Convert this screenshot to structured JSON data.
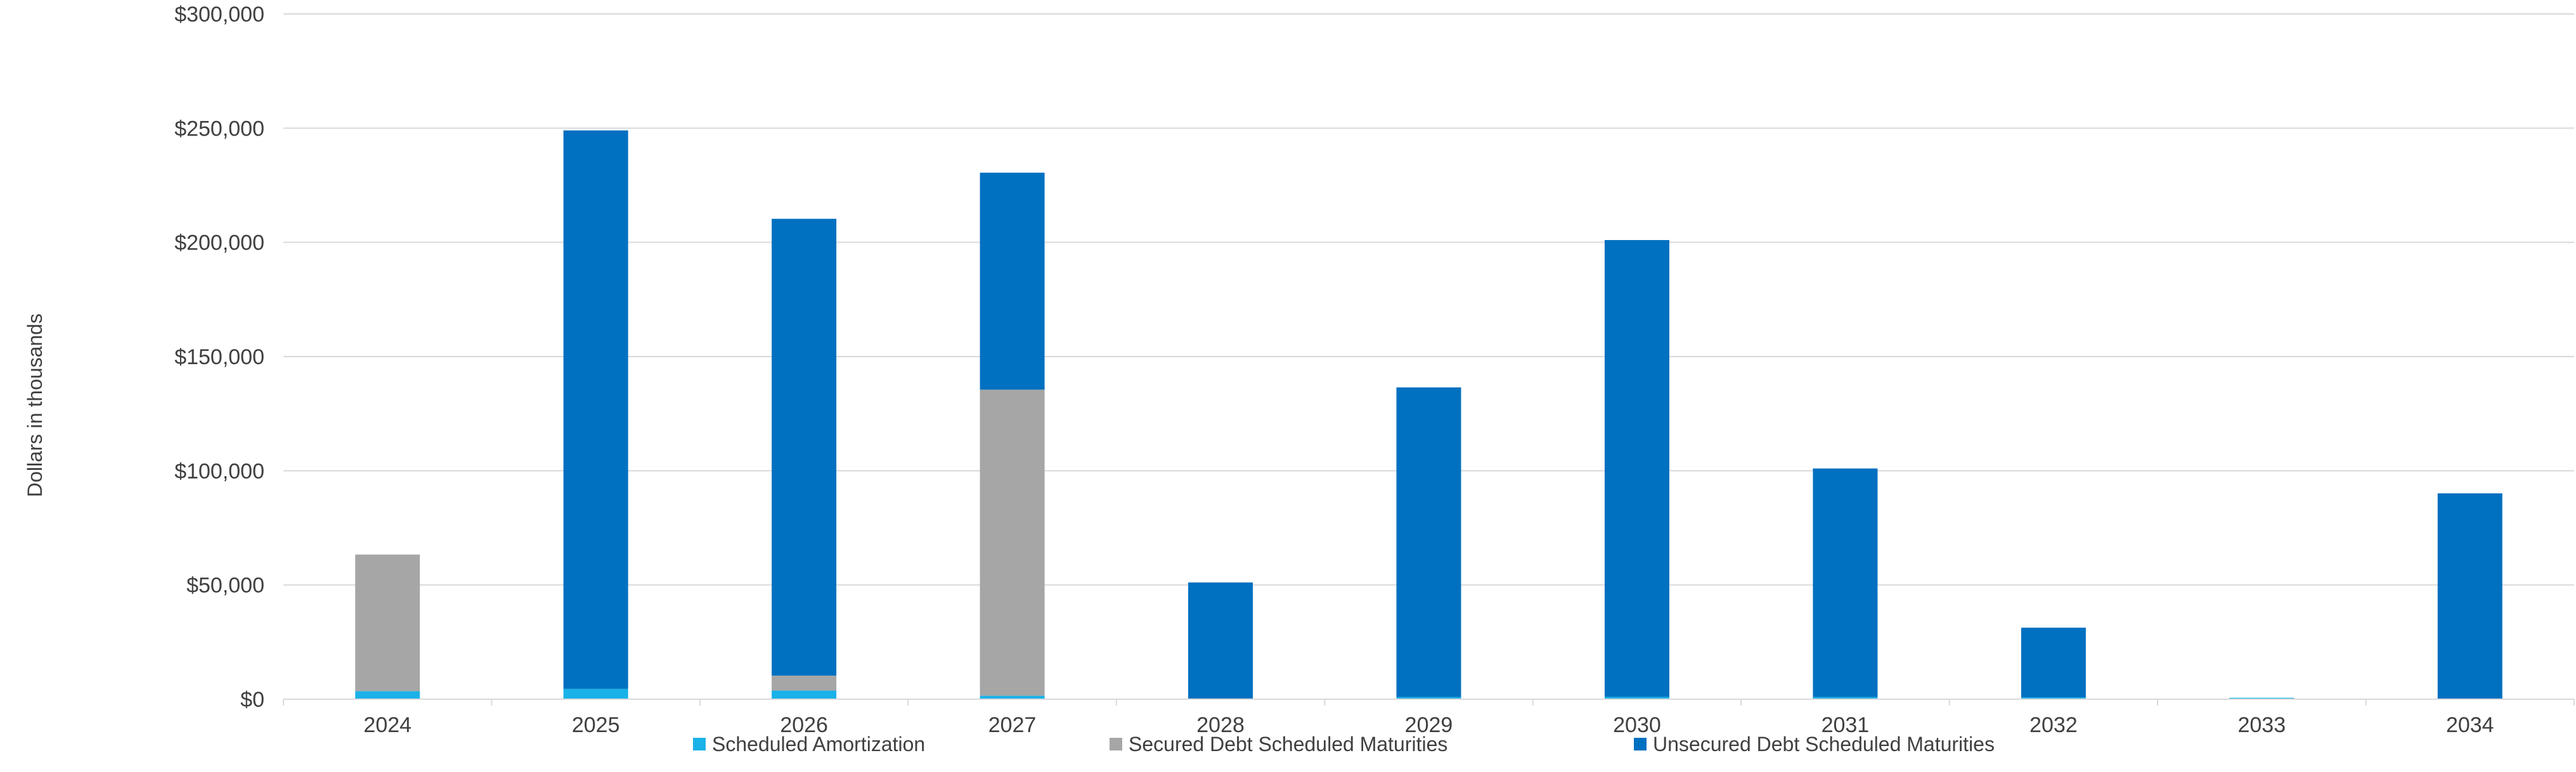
{
  "chart_data": {
    "type": "stacked-bar",
    "title": "",
    "xlabel": "",
    "ylabel": "Dollars in thousands",
    "categories": [
      "2024",
      "2025",
      "2026",
      "2027",
      "2028",
      "2029",
      "2030",
      "2031",
      "2032",
      "2033",
      "2034"
    ],
    "series": [
      {
        "name": "Scheduled Amortization",
        "color": "#1ab2e8",
        "values": [
          3500,
          4500,
          3800,
          1500,
          300,
          900,
          1000,
          900,
          800,
          600,
          100
        ]
      },
      {
        "name": "Secured Debt Scheduled Maturities",
        "color": "#a6a6a6",
        "values": [
          59800,
          0,
          6500,
          134000,
          0,
          0,
          0,
          0,
          0,
          0,
          0
        ]
      },
      {
        "name": "Unsecured Debt Scheduled Maturities",
        "color": "#0070c0",
        "values": [
          0,
          244500,
          200000,
          95000,
          50800,
          135600,
          200000,
          100100,
          30500,
          0,
          90000
        ]
      }
    ],
    "ylim": [
      0,
      300000
    ],
    "yticks": [
      0,
      50000,
      100000,
      150000,
      200000,
      250000,
      300000
    ],
    "ytick_labels": [
      "$0",
      "$50,000",
      "$100,000",
      "$150,000",
      "$200,000",
      "$250,000",
      "$300,000"
    ],
    "grid": true,
    "legend_position": "bottom"
  }
}
